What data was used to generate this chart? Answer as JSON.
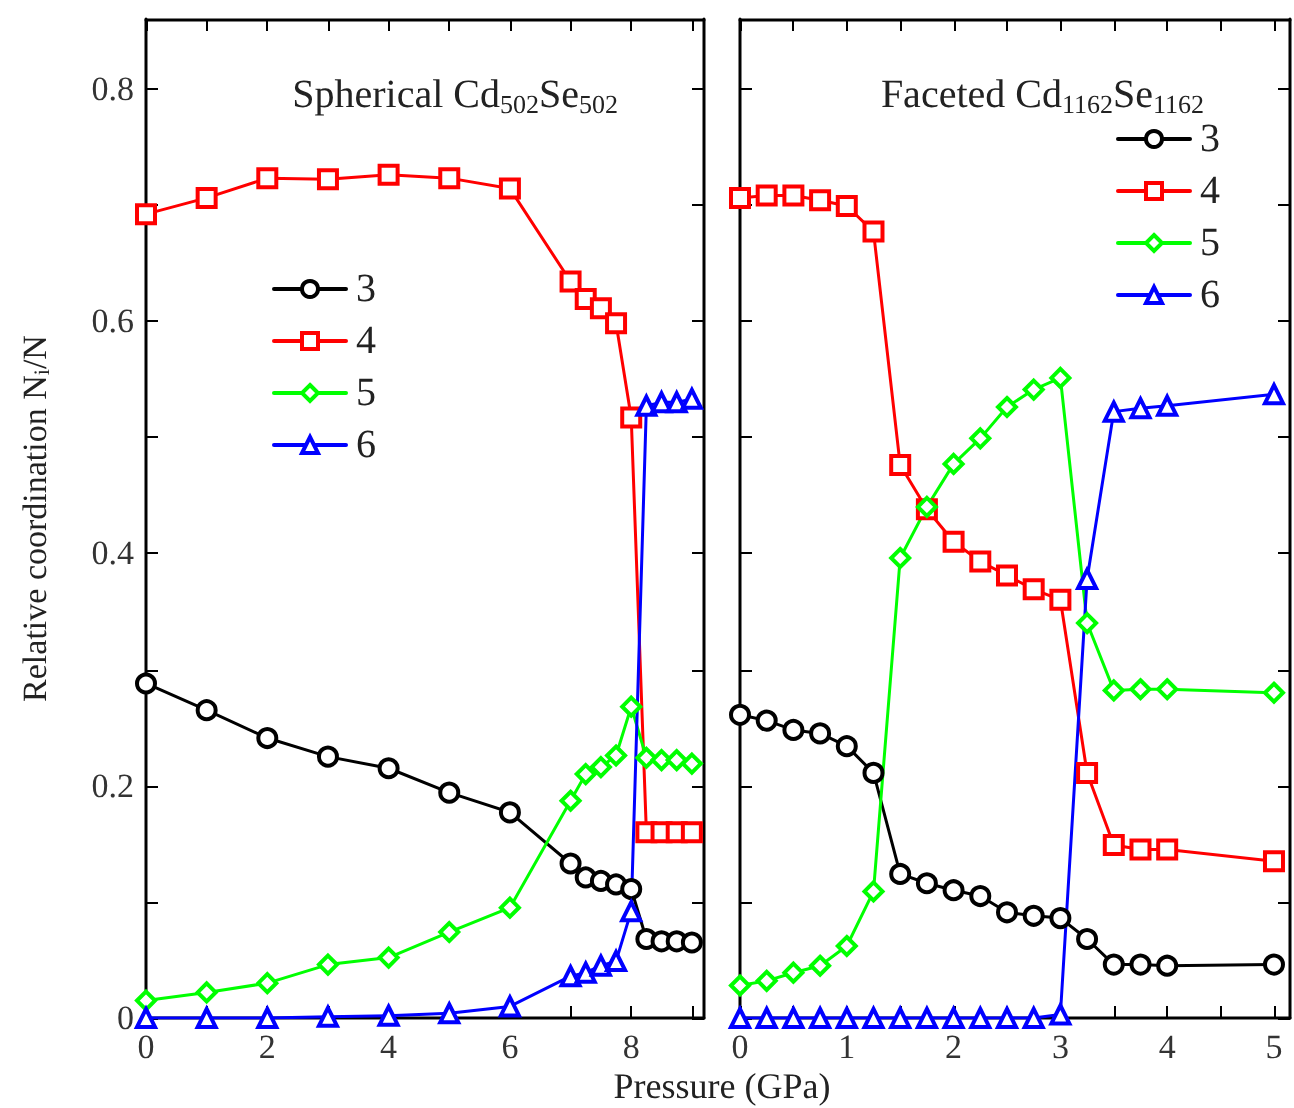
{
  "chart_data": [
    {
      "type": "line",
      "title": "Spherical Cd$_{502}$Se$_{502}$",
      "xlabel": "Pressure (GPa)",
      "ylabel": "Relative coordination N$_{i}$/N",
      "legend": "left",
      "x": [
        0,
        1,
        2,
        3,
        4,
        5,
        6,
        7,
        7.25,
        7.5,
        7.75,
        8,
        8.25,
        8.5,
        8.75,
        9
      ],
      "series": [
        {
          "name": "3",
          "color": "#000000",
          "marker": "circle",
          "values": [
            0.288,
            0.265,
            0.241,
            0.225,
            0.215,
            0.194,
            0.177,
            0.133,
            0.121,
            0.118,
            0.115,
            0.111,
            0.068,
            0.066,
            0.066,
            0.065
          ]
        },
        {
          "name": "4",
          "color": "#ff0000",
          "marker": "square",
          "values": [
            0.692,
            0.706,
            0.723,
            0.722,
            0.726,
            0.723,
            0.714,
            0.634,
            0.619,
            0.611,
            0.598,
            0.517,
            0.16,
            0.16,
            0.16,
            0.16
          ]
        },
        {
          "name": "5",
          "color": "#00ff00",
          "marker": "diamond",
          "values": [
            0.015,
            0.022,
            0.03,
            0.046,
            0.052,
            0.074,
            0.095,
            0.187,
            0.21,
            0.216,
            0.226,
            0.268,
            0.224,
            0.222,
            0.222,
            0.219
          ]
        },
        {
          "name": "6",
          "color": "#0000ff",
          "marker": "triangle",
          "values": [
            0,
            0,
            0,
            0.001,
            0.002,
            0.004,
            0.01,
            0.036,
            0.039,
            0.045,
            0.049,
            0.092,
            0.527,
            0.53,
            0.53,
            0.533
          ]
        }
      ],
      "xlim": [
        0,
        9.2
      ],
      "xticks": [
        0,
        {
          "value": 1,
          "label": null
        },
        2,
        {
          "value": 3,
          "label": null
        },
        4,
        {
          "value": 5,
          "label": null
        },
        6,
        {
          "value": 7,
          "label": null
        },
        8,
        {
          "value": 9,
          "label": null
        }
      ],
      "ylim": [
        0,
        0.86
      ],
      "yticks": [
        0,
        {
          "value": 0.1,
          "label": null
        },
        0.2,
        {
          "value": 0.3,
          "label": null
        },
        0.4,
        {
          "value": 0.5,
          "label": null
        },
        0.6,
        {
          "value": 0.7,
          "label": null
        },
        0.8
      ]
    },
    {
      "type": "line",
      "title": "Faceted Cd$_{1162}$Se$_{1162}$",
      "legend": "top right",
      "tick_labels": "x",
      "x": [
        0,
        0.25,
        0.5,
        0.75,
        1,
        1.25,
        1.5,
        1.75,
        2,
        2.25,
        2.5,
        2.75,
        3,
        3.25,
        3.5,
        3.75,
        4,
        5
      ],
      "series": [
        {
          "name": "3",
          "color": "#000000",
          "marker": "circle",
          "values": [
            0.261,
            0.256,
            0.248,
            0.245,
            0.234,
            0.211,
            0.124,
            0.116,
            0.11,
            0.105,
            0.091,
            0.088,
            0.086,
            0.068,
            0.046,
            0.046,
            0.045,
            0.046
          ]
        },
        {
          "name": "4",
          "color": "#ff0000",
          "marker": "square",
          "values": [
            0.706,
            0.708,
            0.708,
            0.704,
            0.699,
            0.677,
            0.476,
            0.438,
            0.41,
            0.393,
            0.381,
            0.369,
            0.36,
            0.211,
            0.149,
            0.145,
            0.145,
            0.135
          ]
        },
        {
          "name": "5",
          "color": "#00ff00",
          "marker": "diamond",
          "values": [
            0.028,
            0.032,
            0.039,
            0.045,
            0.062,
            0.109,
            0.396,
            0.44,
            0.477,
            0.499,
            0.526,
            0.541,
            0.551,
            0.34,
            0.282,
            0.283,
            0.283,
            0.28
          ]
        },
        {
          "name": "6",
          "color": "#0000ff",
          "marker": "triangle",
          "values": [
            0,
            0,
            0,
            0,
            0,
            0,
            0,
            0,
            0,
            0,
            0,
            0,
            0.003,
            0.378,
            0.522,
            0.525,
            0.527,
            0.537
          ]
        }
      ],
      "xlim": [
        0,
        5.15
      ],
      "xticks": [
        0,
        {
          "value": 0.5,
          "label": null
        },
        1,
        {
          "value": 1.5,
          "label": null
        },
        2,
        {
          "value": 2.5,
          "label": null
        },
        3,
        {
          "value": 3.5,
          "label": null
        },
        4,
        {
          "value": 4.5,
          "label": null
        },
        5
      ],
      "ylim": [
        0,
        0.86
      ],
      "yticks": [
        0,
        {
          "value": 0.1,
          "label": null
        },
        0.2,
        {
          "value": 0.3,
          "label": null
        },
        0.4,
        {
          "value": 0.5,
          "label": null
        },
        0.6,
        {
          "value": 0.7,
          "label": null
        },
        0.8
      ]
    }
  ]
}
